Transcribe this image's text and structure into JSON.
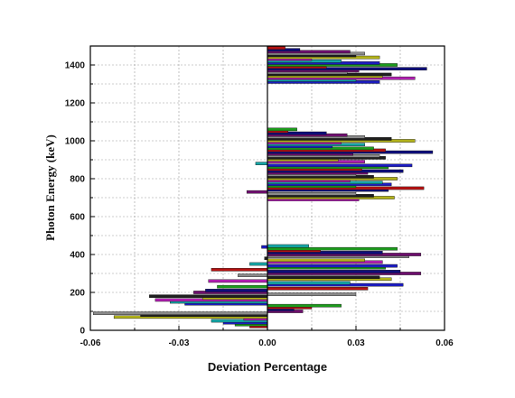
{
  "chart_data": {
    "type": "bar",
    "orientation": "horizontal",
    "xlabel": "Deviation Percentage",
    "ylabel": "Photon Energy (keV)",
    "xlim": [
      -0.06,
      0.06
    ],
    "ylim": [
      0,
      1500
    ],
    "xticks": [
      "-0.06",
      "-0.03",
      "0.00",
      "0.03",
      "0.06"
    ],
    "xtick_values": [
      -0.06,
      -0.03,
      0.0,
      0.03,
      0.06
    ],
    "yticks": [
      "0",
      "200",
      "400",
      "600",
      "800",
      "1000",
      "1200",
      "1400"
    ],
    "ytick_values": [
      0,
      200,
      400,
      600,
      800,
      1000,
      1200,
      1400
    ],
    "grid": true,
    "bar_colors": [
      "#b51212",
      "#1c9a1c",
      "#1c1cc0",
      "#16a6a6",
      "#b01eb0",
      "#b2b21a",
      "#1e1e1e",
      "#8a8a8a",
      "#6e0e6e",
      "#0e0e7a"
    ],
    "bars": [
      {
        "y": 20,
        "x": -0.006
      },
      {
        "y": 30,
        "x": -0.011
      },
      {
        "y": 40,
        "x": -0.015
      },
      {
        "y": 50,
        "x": -0.019
      },
      {
        "y": 60,
        "x": -0.008
      },
      {
        "y": 70,
        "x": -0.052
      },
      {
        "y": 80,
        "x": -0.043
      },
      {
        "y": 90,
        "x": -0.059
      },
      {
        "y": 100,
        "x": 0.012
      },
      {
        "y": 110,
        "x": 0.009
      },
      {
        "y": 120,
        "x": 0.015
      },
      {
        "y": 130,
        "x": 0.025
      },
      {
        "y": 140,
        "x": -0.028
      },
      {
        "y": 150,
        "x": -0.033
      },
      {
        "y": 160,
        "x": -0.038
      },
      {
        "y": 170,
        "x": -0.022
      },
      {
        "y": 180,
        "x": -0.04
      },
      {
        "y": 190,
        "x": 0.03
      },
      {
        "y": 200,
        "x": -0.025
      },
      {
        "y": 210,
        "x": -0.021
      },
      {
        "y": 220,
        "x": 0.034
      },
      {
        "y": 230,
        "x": -0.017
      },
      {
        "y": 240,
        "x": 0.046
      },
      {
        "y": 250,
        "x": 0.028
      },
      {
        "y": 260,
        "x": -0.02
      },
      {
        "y": 270,
        "x": 0.042
      },
      {
        "y": 280,
        "x": 0.038
      },
      {
        "y": 290,
        "x": -0.01
      },
      {
        "y": 300,
        "x": 0.052
      },
      {
        "y": 310,
        "x": 0.045
      },
      {
        "y": 320,
        "x": -0.019
      },
      {
        "y": 330,
        "x": 0.04
      },
      {
        "y": 340,
        "x": 0.044
      },
      {
        "y": 350,
        "x": -0.006
      },
      {
        "y": 360,
        "x": 0.039
      },
      {
        "y": 370,
        "x": 0.033
      },
      {
        "y": 380,
        "x": -0.001
      },
      {
        "y": 390,
        "x": 0.048
      },
      {
        "y": 400,
        "x": 0.052
      },
      {
        "y": 410,
        "x": 0.039
      },
      {
        "y": 420,
        "x": 0.018
      },
      {
        "y": 430,
        "x": 0.044
      },
      {
        "y": 440,
        "x": -0.002
      },
      {
        "y": 445,
        "x": 0.014
      },
      {
        "y": 690,
        "x": 0.031
      },
      {
        "y": 700,
        "x": 0.043
      },
      {
        "y": 710,
        "x": 0.036
      },
      {
        "y": 720,
        "x": 0.03
      },
      {
        "y": 730,
        "x": -0.007
      },
      {
        "y": 740,
        "x": 0.041
      },
      {
        "y": 750,
        "x": 0.053
      },
      {
        "y": 760,
        "x": 0.03
      },
      {
        "y": 770,
        "x": 0.042
      },
      {
        "y": 780,
        "x": 0.039
      },
      {
        "y": 790,
        "x": 0.028
      },
      {
        "y": 800,
        "x": 0.044
      },
      {
        "y": 810,
        "x": 0.036
      },
      {
        "y": 820,
        "x": 0.03
      },
      {
        "y": 830,
        "x": 0.034
      },
      {
        "y": 840,
        "x": 0.046
      },
      {
        "y": 850,
        "x": 0.032
      },
      {
        "y": 860,
        "x": 0.041
      },
      {
        "y": 870,
        "x": 0.049
      },
      {
        "y": 880,
        "x": -0.004
      },
      {
        "y": 890,
        "x": 0.033
      },
      {
        "y": 900,
        "x": 0.024
      },
      {
        "y": 910,
        "x": 0.04
      },
      {
        "y": 920,
        "x": 0.038
      },
      {
        "y": 930,
        "x": 0.029
      },
      {
        "y": 940,
        "x": 0.056
      },
      {
        "y": 950,
        "x": 0.04
      },
      {
        "y": 960,
        "x": 0.036
      },
      {
        "y": 970,
        "x": 0.022
      },
      {
        "y": 980,
        "x": 0.033
      },
      {
        "y": 990,
        "x": 0.025
      },
      {
        "y": 1000,
        "x": 0.05
      },
      {
        "y": 1010,
        "x": 0.042
      },
      {
        "y": 1020,
        "x": 0.033
      },
      {
        "y": 1030,
        "x": 0.027
      },
      {
        "y": 1040,
        "x": 0.02
      },
      {
        "y": 1050,
        "x": 0.007
      },
      {
        "y": 1060,
        "x": 0.01
      },
      {
        "y": 1310,
        "x": 0.038
      },
      {
        "y": 1320,
        "x": 0.03
      },
      {
        "y": 1330,
        "x": 0.05
      },
      {
        "y": 1340,
        "x": 0.039
      },
      {
        "y": 1350,
        "x": 0.042
      },
      {
        "y": 1360,
        "x": 0.027
      },
      {
        "y": 1370,
        "x": 0.031
      },
      {
        "y": 1380,
        "x": 0.054
      },
      {
        "y": 1390,
        "x": 0.02
      },
      {
        "y": 1400,
        "x": 0.044
      },
      {
        "y": 1410,
        "x": 0.038
      },
      {
        "y": 1420,
        "x": 0.025
      },
      {
        "y": 1430,
        "x": 0.015
      },
      {
        "y": 1440,
        "x": 0.038
      },
      {
        "y": 1450,
        "x": 0.03
      },
      {
        "y": 1460,
        "x": 0.033
      },
      {
        "y": 1470,
        "x": 0.028
      },
      {
        "y": 1480,
        "x": 0.011
      },
      {
        "y": 1490,
        "x": 0.006
      }
    ]
  }
}
